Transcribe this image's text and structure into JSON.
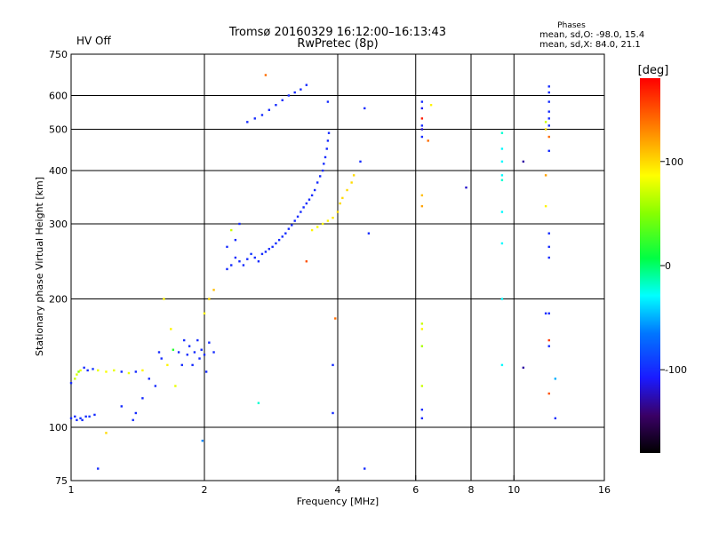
{
  "header": {
    "title_line1": "Tromsø 20160329 16:12:00–16:13:43",
    "title_line2": "RwPretec (8p)",
    "status": "HV Off",
    "status_color": "#cc0000"
  },
  "phases": {
    "title": "Phases",
    "line_o": "mean, sd,O: -98.0, 15.4",
    "line_x": "mean, sd,X:  84.0, 21.1"
  },
  "colorbar": {
    "label": "[deg]",
    "min": -180,
    "max": 180,
    "ticks": [
      100,
      0,
      -100
    ],
    "tick_labels": [
      "100",
      "0",
      "-100"
    ]
  },
  "chart_data": {
    "type": "scatter",
    "title": "Tromsø 20160329 16:12:00–16:13:43",
    "subtitle": "RwPretec (8p)",
    "xlabel": "Frequency [MHz]",
    "ylabel": "Stationary phase Virtual Height [km]",
    "xscale": "log",
    "yscale": "log",
    "xlim": [
      1,
      16
    ],
    "ylim": [
      75,
      750
    ],
    "xticks": [
      1,
      2,
      4,
      6,
      8,
      10,
      16
    ],
    "xtick_labels": [
      "1",
      "2",
      "4",
      "6",
      "8",
      "10",
      "16"
    ],
    "x_gridlines": [
      2,
      4,
      6,
      8,
      10
    ],
    "yticks": [
      75,
      100,
      200,
      300,
      400,
      500,
      600,
      750
    ],
    "ytick_labels": [
      "75",
      "100",
      "200",
      "300",
      "400",
      "500",
      "600",
      "750"
    ],
    "y_gridlines": [
      100,
      200,
      300,
      400,
      500,
      600
    ],
    "grid": true,
    "color_dimension": "phase [deg]",
    "series": [
      {
        "points": [
          [
            1.0,
            105,
            -100
          ],
          [
            1.03,
            104,
            -100
          ],
          [
            1.05,
            105,
            -95
          ],
          [
            1.08,
            106,
            -100
          ],
          [
            1.1,
            106,
            -95
          ],
          [
            1.13,
            107,
            -100
          ],
          [
            1.06,
            104,
            -100
          ],
          [
            1.02,
            106,
            -100
          ],
          [
            1.0,
            127,
            -100
          ],
          [
            1.02,
            130,
            70
          ],
          [
            1.03,
            133,
            75
          ],
          [
            1.05,
            136,
            80
          ],
          [
            1.07,
            138,
            -100
          ],
          [
            1.09,
            136,
            -100
          ],
          [
            1.12,
            137,
            -95
          ],
          [
            1.15,
            136,
            80
          ],
          [
            1.2,
            135,
            85
          ],
          [
            1.25,
            136,
            80
          ],
          [
            1.3,
            135,
            -100
          ],
          [
            1.35,
            134,
            80
          ],
          [
            1.4,
            135,
            -100
          ],
          [
            1.45,
            136,
            90
          ],
          [
            1.04,
            135,
            50
          ],
          [
            1.5,
            130,
            -100
          ],
          [
            1.55,
            125,
            -100
          ],
          [
            1.6,
            145,
            -100
          ],
          [
            1.65,
            140,
            90
          ],
          [
            1.7,
            152,
            20
          ],
          [
            1.75,
            150,
            -100
          ],
          [
            1.8,
            160,
            -100
          ],
          [
            1.85,
            155,
            -100
          ],
          [
            1.9,
            150,
            -100
          ],
          [
            1.95,
            145,
            -100
          ],
          [
            2.0,
            148,
            -100
          ],
          [
            2.05,
            158,
            -100
          ],
          [
            2.1,
            150,
            -100
          ],
          [
            1.78,
            140,
            -100
          ],
          [
            1.88,
            140,
            -100
          ],
          [
            1.97,
            152,
            -100
          ],
          [
            2.02,
            135,
            -100
          ],
          [
            1.83,
            148,
            -100
          ],
          [
            1.93,
            160,
            -100
          ],
          [
            1.72,
            125,
            80
          ],
          [
            1.68,
            170,
            90
          ],
          [
            1.62,
            200,
            90
          ],
          [
            1.58,
            150,
            -100
          ],
          [
            1.45,
            117,
            -100
          ],
          [
            1.4,
            108,
            -100
          ],
          [
            1.3,
            112,
            -100
          ],
          [
            1.15,
            80,
            -100
          ],
          [
            1.2,
            97,
            100
          ],
          [
            1.38,
            104,
            -100
          ],
          [
            2.25,
            235,
            -100
          ],
          [
            2.3,
            240,
            -100
          ],
          [
            2.4,
            245,
            -100
          ],
          [
            2.5,
            248,
            -100
          ],
          [
            2.6,
            250,
            -100
          ],
          [
            2.7,
            255,
            -100
          ],
          [
            2.8,
            262,
            -100
          ],
          [
            2.9,
            270,
            -100
          ],
          [
            3.0,
            280,
            -100
          ],
          [
            3.1,
            292,
            -100
          ],
          [
            3.2,
            305,
            -100
          ],
          [
            3.3,
            320,
            -100
          ],
          [
            3.4,
            335,
            -100
          ],
          [
            3.5,
            350,
            -100
          ],
          [
            3.6,
            375,
            -100
          ],
          [
            3.7,
            400,
            -100
          ],
          [
            3.75,
            430,
            -100
          ],
          [
            3.8,
            470,
            -100
          ],
          [
            3.82,
            490,
            -100
          ],
          [
            2.35,
            250,
            -100
          ],
          [
            2.45,
            240,
            -100
          ],
          [
            2.55,
            255,
            -95
          ],
          [
            2.65,
            245,
            -100
          ],
          [
            2.75,
            258,
            -100
          ],
          [
            2.85,
            265,
            -100
          ],
          [
            2.95,
            275,
            -100
          ],
          [
            3.05,
            285,
            -100
          ],
          [
            3.15,
            298,
            -100
          ],
          [
            3.25,
            312,
            -100
          ],
          [
            3.35,
            328,
            -100
          ],
          [
            3.45,
            342,
            -100
          ],
          [
            3.55,
            360,
            -100
          ],
          [
            3.65,
            388,
            -100
          ],
          [
            3.72,
            415,
            -100
          ],
          [
            3.78,
            450,
            -100
          ],
          [
            2.25,
            265,
            -100
          ],
          [
            2.3,
            290,
            70
          ],
          [
            2.35,
            275,
            -100
          ],
          [
            2.4,
            300,
            -100
          ],
          [
            2.5,
            520,
            -100
          ],
          [
            2.6,
            530,
            -100
          ],
          [
            2.7,
            540,
            -100
          ],
          [
            2.8,
            555,
            -100
          ],
          [
            2.9,
            570,
            -100
          ],
          [
            3.0,
            585,
            -100
          ],
          [
            3.1,
            600,
            -100
          ],
          [
            3.2,
            610,
            -100
          ],
          [
            3.3,
            620,
            -100
          ],
          [
            3.4,
            635,
            -100
          ],
          [
            2.75,
            670,
            140
          ],
          [
            3.8,
            580,
            -100
          ],
          [
            3.5,
            290,
            90
          ],
          [
            3.6,
            295,
            85
          ],
          [
            3.7,
            300,
            90
          ],
          [
            3.8,
            305,
            90
          ],
          [
            3.9,
            310,
            95
          ],
          [
            4.0,
            320,
            100
          ],
          [
            4.05,
            335,
            100
          ],
          [
            4.1,
            345,
            100
          ],
          [
            4.2,
            360,
            100
          ],
          [
            4.3,
            375,
            100
          ],
          [
            4.35,
            390,
            100
          ],
          [
            3.95,
            180,
            140
          ],
          [
            3.4,
            245,
            150
          ],
          [
            2.1,
            210,
            110
          ],
          [
            2.05,
            200,
            100
          ],
          [
            2.0,
            185,
            90
          ],
          [
            4.6,
            560,
            -100
          ],
          [
            4.5,
            420,
            -100
          ],
          [
            4.7,
            285,
            -100
          ],
          [
            4.6,
            80,
            -100
          ],
          [
            3.9,
            140,
            -100
          ],
          [
            3.9,
            108,
            -100
          ],
          [
            2.65,
            114,
            -20
          ],
          [
            1.98,
            93,
            -60
          ],
          [
            6.2,
            580,
            -100
          ],
          [
            6.2,
            560,
            -110
          ],
          [
            6.2,
            530,
            170
          ],
          [
            6.2,
            510,
            -100
          ],
          [
            6.2,
            500,
            -120
          ],
          [
            6.2,
            480,
            -100
          ],
          [
            6.4,
            470,
            140
          ],
          [
            6.5,
            570,
            90
          ],
          [
            6.2,
            350,
            110
          ],
          [
            6.2,
            330,
            120
          ],
          [
            6.2,
            175,
            70
          ],
          [
            6.2,
            170,
            90
          ],
          [
            6.2,
            155,
            60
          ],
          [
            6.2,
            125,
            70
          ],
          [
            6.2,
            110,
            -100
          ],
          [
            6.2,
            105,
            -100
          ],
          [
            7.8,
            365,
            -120
          ],
          [
            9.4,
            490,
            -20
          ],
          [
            9.4,
            450,
            -30
          ],
          [
            9.4,
            420,
            -30
          ],
          [
            9.4,
            390,
            -30
          ],
          [
            9.4,
            380,
            -20
          ],
          [
            9.4,
            320,
            -30
          ],
          [
            9.4,
            270,
            -30
          ],
          [
            9.4,
            200,
            -30
          ],
          [
            9.4,
            140,
            -30
          ],
          [
            10.5,
            420,
            -130
          ],
          [
            10.5,
            138,
            -130
          ],
          [
            12.0,
            610,
            -100
          ],
          [
            12.0,
            580,
            -100
          ],
          [
            12.0,
            550,
            -100
          ],
          [
            12.0,
            530,
            -100
          ],
          [
            12.0,
            510,
            -100
          ],
          [
            11.8,
            500,
            100
          ],
          [
            11.8,
            520,
            70
          ],
          [
            12.0,
            480,
            140
          ],
          [
            12.0,
            445,
            -100
          ],
          [
            11.8,
            390,
            120
          ],
          [
            11.8,
            330,
            90
          ],
          [
            12.0,
            285,
            -100
          ],
          [
            12.0,
            265,
            -100
          ],
          [
            12.0,
            250,
            -100
          ],
          [
            11.8,
            185,
            -100
          ],
          [
            12.0,
            185,
            -100
          ],
          [
            12.0,
            160,
            160
          ],
          [
            12.0,
            155,
            -100
          ],
          [
            12.0,
            120,
            150
          ],
          [
            12.4,
            130,
            -50
          ],
          [
            12.4,
            105,
            -100
          ],
          [
            12.0,
            630,
            -100
          ]
        ]
      }
    ]
  }
}
